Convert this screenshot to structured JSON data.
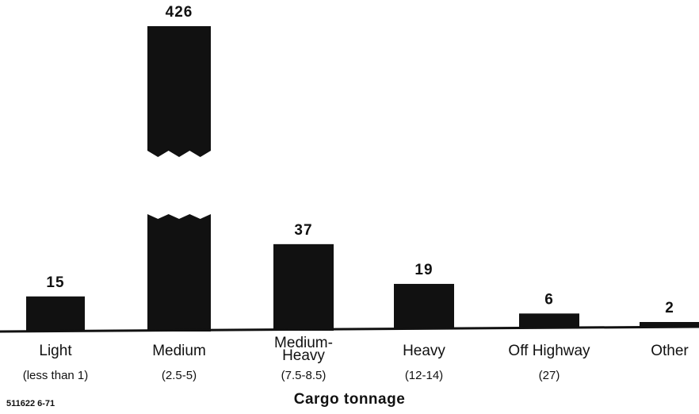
{
  "chart_data": {
    "type": "bar",
    "categories": [
      "Light",
      "Medium",
      "Medium-\nHeavy",
      "Heavy",
      "Off Highway",
      "Other"
    ],
    "sublabels": [
      "(less than 1)",
      "(2.5-5)",
      "(7.5-8.5)",
      "(12-14)",
      "(27)",
      ""
    ],
    "values": [
      15,
      426,
      37,
      19,
      6,
      2
    ],
    "value_labels": [
      "15",
      "426",
      "37",
      "19",
      "6",
      "2"
    ],
    "xlabel": "Cargo tonnage",
    "ylabel": "",
    "title": "",
    "axis_break": "Medium bar is broken (zig-zag cut) to fit the tall value",
    "bar_color": "#111111"
  },
  "figure_code": "511622 6-71"
}
